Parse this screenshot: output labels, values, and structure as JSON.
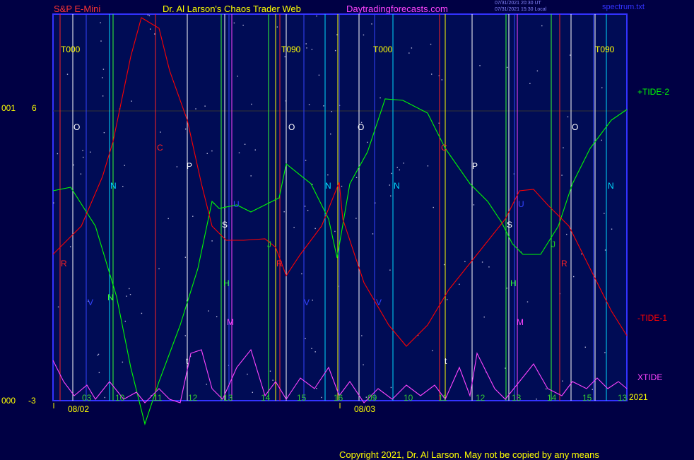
{
  "header": {
    "left": "S&P E-Mini",
    "center": "Dr. Al Larson's Chaos Trader Web",
    "site": "Daytradingforecasts.com",
    "stamp1": "07/31/2021 20:30 UT",
    "stamp2": "07/31/2021 15:30 Local",
    "file": "spectrum.txt"
  },
  "footer": {
    "copyright": "Copyright 2021, Dr. Al Larson. May not be copied by any means",
    "year": "2021"
  },
  "colors": {
    "background": "#000044",
    "plot": "#000c55",
    "tide_plus": "#00ff00",
    "tide_minus": "#ff0000",
    "xtide": "#ff44ff",
    "frame": "#3333ff"
  },
  "chart_data": {
    "type": "line",
    "y_ticks": [
      {
        "left": "001",
        "value": "6"
      },
      {
        "left": "000",
        "value": "-3"
      }
    ],
    "x_tick_labels": [
      "03",
      "10",
      "11",
      "12",
      "13",
      "14",
      "15",
      "16",
      "09",
      "10",
      "11",
      "12",
      "13",
      "14",
      "15",
      "13"
    ],
    "date_labels": [
      "08/02",
      "08/03"
    ],
    "series": [
      {
        "name": "+TIDE-2",
        "color": "#00ff00",
        "points": [
          [
            0,
            250
          ],
          [
            25,
            245
          ],
          [
            60,
            300
          ],
          [
            90,
            400
          ],
          [
            110,
            500
          ],
          [
            130,
            580
          ],
          [
            150,
            520
          ],
          [
            180,
            440
          ],
          [
            205,
            360
          ],
          [
            225,
            265
          ],
          [
            235,
            275
          ],
          [
            260,
            270
          ],
          [
            280,
            280
          ],
          [
            300,
            270
          ],
          [
            320,
            260
          ],
          [
            330,
            212
          ],
          [
            365,
            240
          ],
          [
            390,
            290
          ],
          [
            402,
            345
          ],
          [
            420,
            240
          ],
          [
            445,
            195
          ],
          [
            470,
            120
          ],
          [
            495,
            122
          ],
          [
            530,
            140
          ],
          [
            555,
            190
          ],
          [
            590,
            240
          ],
          [
            615,
            265
          ],
          [
            635,
            295
          ],
          [
            650,
            325
          ],
          [
            665,
            340
          ],
          [
            690,
            340
          ],
          [
            715,
            300
          ],
          [
            735,
            240
          ],
          [
            760,
            190
          ],
          [
            790,
            150
          ],
          [
            812,
            135
          ]
        ]
      },
      {
        "name": "-TIDE-1",
        "color": "#ff0000",
        "points": [
          [
            0,
            340
          ],
          [
            15,
            325
          ],
          [
            40,
            300
          ],
          [
            70,
            230
          ],
          [
            85,
            180
          ],
          [
            110,
            60
          ],
          [
            125,
            5
          ],
          [
            150,
            20
          ],
          [
            165,
            80
          ],
          [
            190,
            150
          ],
          [
            210,
            240
          ],
          [
            225,
            300
          ],
          [
            245,
            320
          ],
          [
            270,
            320
          ],
          [
            300,
            318
          ],
          [
            315,
            330
          ],
          [
            330,
            370
          ],
          [
            350,
            340
          ],
          [
            380,
            300
          ],
          [
            405,
            238
          ],
          [
            410,
            290
          ],
          [
            440,
            380
          ],
          [
            475,
            440
          ],
          [
            500,
            470
          ],
          [
            530,
            440
          ],
          [
            560,
            390
          ],
          [
            600,
            340
          ],
          [
            640,
            290
          ],
          [
            660,
            250
          ],
          [
            680,
            248
          ],
          [
            700,
            270
          ],
          [
            730,
            300
          ],
          [
            760,
            360
          ],
          [
            790,
            420
          ],
          [
            812,
            455
          ]
        ]
      },
      {
        "name": "XTIDE",
        "color": "#ff44ff",
        "points": [
          [
            0,
            490
          ],
          [
            15,
            520
          ],
          [
            30,
            540
          ],
          [
            48,
            525
          ],
          [
            60,
            545
          ],
          [
            80,
            520
          ],
          [
            100,
            545
          ],
          [
            118,
            535
          ],
          [
            130,
            550
          ],
          [
            150,
            530
          ],
          [
            165,
            545
          ],
          [
            180,
            550
          ],
          [
            195,
            480
          ],
          [
            210,
            475
          ],
          [
            225,
            530
          ],
          [
            240,
            545
          ],
          [
            260,
            500
          ],
          [
            280,
            475
          ],
          [
            300,
            540
          ],
          [
            315,
            520
          ],
          [
            330,
            545
          ],
          [
            350,
            515
          ],
          [
            370,
            530
          ],
          [
            390,
            500
          ],
          [
            405,
            540
          ],
          [
            420,
            520
          ],
          [
            440,
            550
          ],
          [
            460,
            530
          ],
          [
            480,
            545
          ],
          [
            500,
            525
          ],
          [
            520,
            540
          ],
          [
            540,
            525
          ],
          [
            555,
            545
          ],
          [
            575,
            500
          ],
          [
            590,
            540
          ],
          [
            600,
            480
          ],
          [
            625,
            530
          ],
          [
            640,
            545
          ],
          [
            660,
            520
          ],
          [
            680,
            495
          ],
          [
            700,
            530
          ],
          [
            720,
            540
          ],
          [
            735,
            520
          ],
          [
            755,
            530
          ],
          [
            770,
            515
          ],
          [
            785,
            530
          ],
          [
            800,
            520
          ],
          [
            812,
            530
          ]
        ]
      }
    ],
    "cycle_markers": [
      {
        "text": "T000",
        "color": "#ffff00"
      },
      {
        "text": "T090",
        "color": "#ffff00"
      },
      {
        "text": "T000",
        "color": "#ffff00"
      },
      {
        "text": "T090",
        "color": "#ffff00"
      },
      {
        "text": "O",
        "color": "#ffffff"
      },
      {
        "text": "O",
        "color": "#ffffff"
      },
      {
        "text": "O",
        "color": "#ffffff"
      },
      {
        "text": "O",
        "color": "#ffffff"
      },
      {
        "text": "C",
        "color": "#ff2222"
      },
      {
        "text": "C",
        "color": "#ff2222"
      },
      {
        "text": "P",
        "color": "#ffffff"
      },
      {
        "text": "P",
        "color": "#ffffff"
      },
      {
        "text": "N",
        "color": "#00ddff"
      },
      {
        "text": "N",
        "color": "#00ddff"
      },
      {
        "text": "N",
        "color": "#00ddff"
      },
      {
        "text": "N",
        "color": "#00ddff"
      },
      {
        "text": "R",
        "color": "#ff2222"
      },
      {
        "text": "R",
        "color": "#ff2222"
      },
      {
        "text": "R",
        "color": "#ff2222"
      },
      {
        "text": "S",
        "color": "#ffffff"
      },
      {
        "text": "S",
        "color": "#ffffff"
      },
      {
        "text": "U",
        "color": "#3344ff"
      },
      {
        "text": "U",
        "color": "#3344ff"
      },
      {
        "text": "J",
        "color": "#22cc22"
      },
      {
        "text": "J",
        "color": "#22cc22"
      },
      {
        "text": "H",
        "color": "#33ff33"
      },
      {
        "text": "H",
        "color": "#33ff33"
      },
      {
        "text": "M",
        "color": "#ff44ff"
      },
      {
        "text": "M",
        "color": "#ff44ff"
      },
      {
        "text": "V",
        "color": "#3344ff"
      },
      {
        "text": "V",
        "color": "#3344ff"
      },
      {
        "text": "V",
        "color": "#3344ff"
      },
      {
        "text": "t",
        "color": "#ffffff"
      },
      {
        "text": "t",
        "color": "#ffffff"
      },
      {
        "text": "N",
        "color": "#33ff33"
      }
    ],
    "vlines": [
      {
        "x": 85,
        "color": "#ff2222"
      },
      {
        "x": 103,
        "color": "#ffffff"
      },
      {
        "x": 122,
        "color": "#3344ff"
      },
      {
        "x": 155,
        "color": "#00ddff"
      },
      {
        "x": 160,
        "color": "#33ff33"
      },
      {
        "x": 220,
        "color": "#ff2222"
      },
      {
        "x": 265,
        "color": "#ffffff"
      },
      {
        "x": 313,
        "color": "#33ff33"
      },
      {
        "x": 318,
        "color": "#ffffff"
      },
      {
        "x": 324,
        "color": "#3344ff"
      },
      {
        "x": 328,
        "color": "#ff44ff"
      },
      {
        "x": 380,
        "color": "#33ff33"
      },
      {
        "x": 390,
        "color": "#ffff00"
      },
      {
        "x": 396,
        "color": "#ff2222"
      },
      {
        "x": 405,
        "color": "#ffffff"
      },
      {
        "x": 430,
        "color": "#3344ff"
      },
      {
        "x": 460,
        "color": "#00ddff"
      },
      {
        "x": 478,
        "color": "#ffff00"
      },
      {
        "x": 480,
        "color": "#3344ff"
      },
      {
        "x": 508,
        "color": "#ffffff"
      },
      {
        "x": 530,
        "color": "#3344ff"
      },
      {
        "x": 556,
        "color": "#00ddff"
      },
      {
        "x": 622,
        "color": "#ff2222"
      },
      {
        "x": 630,
        "color": "#ffff00"
      },
      {
        "x": 668,
        "color": "#ffffff"
      },
      {
        "x": 716,
        "color": "#33ff33"
      },
      {
        "x": 720,
        "color": "#ffffff"
      },
      {
        "x": 728,
        "color": "#3344ff"
      },
      {
        "x": 732,
        "color": "#ff44ff"
      },
      {
        "x": 780,
        "color": "#33ff33"
      },
      {
        "x": 792,
        "color": "#ff2222"
      },
      {
        "x": 808,
        "color": "#ffffff"
      },
      {
        "x": 840,
        "color": "#3344ff"
      },
      {
        "x": 842,
        "color": "#ffffff"
      },
      {
        "x": 858,
        "color": "#00ddff"
      }
    ],
    "series_labels": [
      {
        "text": "+TIDE-2",
        "color": "#00ff00"
      },
      {
        "text": "-TIDE-1",
        "color": "#ff0000"
      },
      {
        "text": "XTIDE",
        "color": "#ff44ff"
      }
    ]
  }
}
